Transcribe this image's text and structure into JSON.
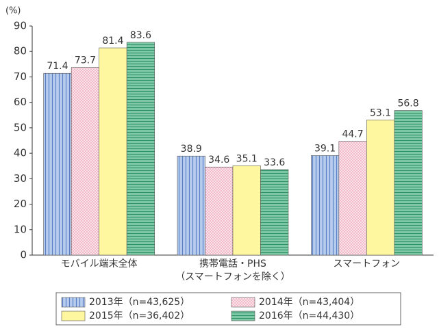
{
  "chart_data": {
    "type": "bar",
    "y_label": "(%)",
    "categories": [
      "モバイル端末全体",
      "携帯電話・PHS\n（スマートフォンを除く）",
      "スマートフォン"
    ],
    "series": [
      {
        "name": "2013年（n=43,625）",
        "color": "#b8cdee",
        "values": [
          71.4,
          38.9,
          39.1
        ]
      },
      {
        "name": "2014年（n=43,404）",
        "color": "#fbe3ea",
        "values": [
          73.7,
          34.6,
          44.7
        ]
      },
      {
        "name": "2015年（n=36,402）",
        "color": "#fff7a0",
        "values": [
          81.4,
          35.1,
          53.1
        ]
      },
      {
        "name": "2016年（n=44,430）",
        "color": "#7fcaa7",
        "values": [
          83.6,
          33.6,
          56.8
        ]
      }
    ],
    "ylim": [
      0,
      90
    ],
    "yticks": [
      0,
      10,
      20,
      30,
      40,
      50,
      60,
      70,
      80,
      90
    ],
    "grid": false
  }
}
